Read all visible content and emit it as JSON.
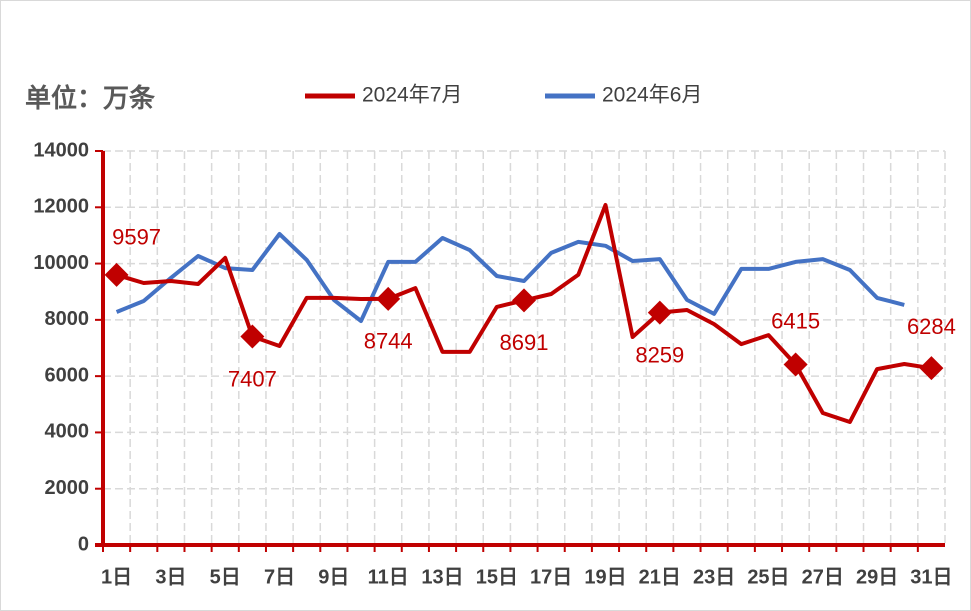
{
  "chart_data": {
    "type": "line",
    "title": "单位：万条",
    "categories": [
      "1日",
      null,
      "3日",
      null,
      "5日",
      null,
      "7日",
      null,
      "9日",
      null,
      "11日",
      null,
      "13日",
      null,
      "15日",
      null,
      "17日",
      null,
      "19日",
      null,
      "21日",
      null,
      "23日",
      null,
      "25日",
      null,
      "27日",
      null,
      "29日",
      null,
      "31日"
    ],
    "series": [
      {
        "name": "2024年7月",
        "color": "#c00000",
        "values": [
          9597,
          9310,
          9380,
          9275,
          10200,
          7407,
          7070,
          8780,
          8780,
          8740,
          8744,
          9130,
          6860,
          6860,
          8460,
          8691,
          8920,
          9600,
          12080,
          7390,
          8259,
          8350,
          7850,
          7140,
          7460,
          6415,
          4690,
          4370,
          6250,
          6430,
          6284
        ]
      },
      {
        "name": "2024年6月",
        "color": "#4472c4",
        "values": [
          8280,
          8670,
          9490,
          10270,
          9840,
          9770,
          11050,
          10130,
          8710,
          7960,
          10060,
          10060,
          10910,
          10480,
          9560,
          9380,
          10380,
          10770,
          10630,
          10090,
          10160,
          8710,
          8210,
          9810,
          9810,
          10060,
          10160,
          9770,
          8780,
          8530,
          null
        ]
      }
    ],
    "ylim": [
      0,
      14000
    ],
    "yticks": [
      0,
      2000,
      4000,
      6000,
      8000,
      10000,
      12000,
      14000
    ],
    "grid": true,
    "legend": "top"
  }
}
